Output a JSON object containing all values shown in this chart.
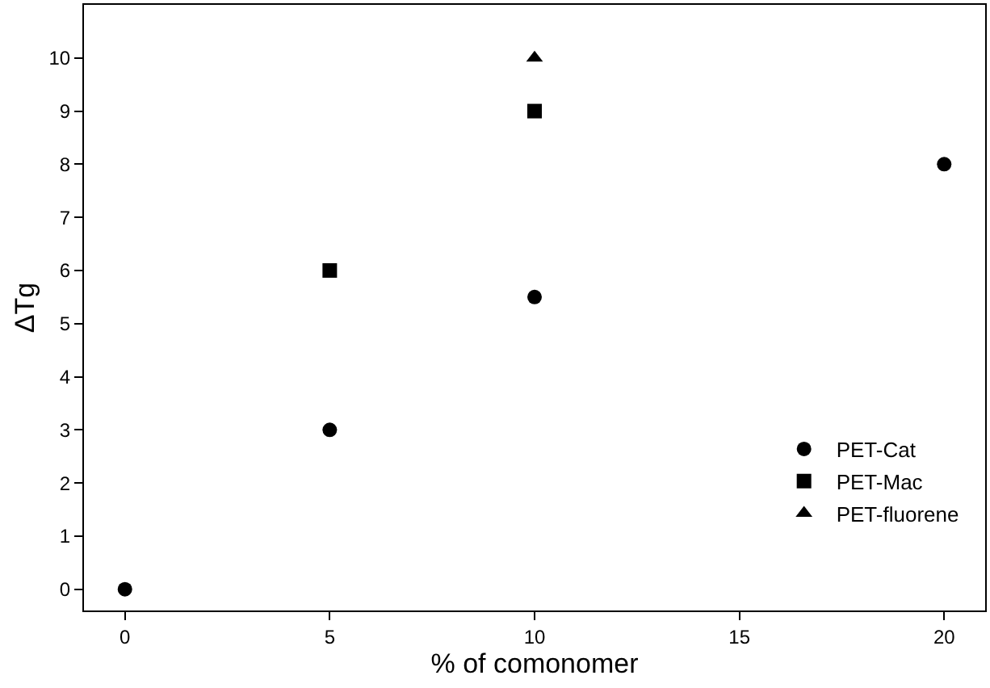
{
  "chart_data": {
    "type": "scatter",
    "xlabel": "% of comonomer",
    "ylabel": "ΔTg",
    "xlim": [
      -1,
      21
    ],
    "xticks": [
      0,
      5,
      10,
      15,
      20
    ],
    "ylim": [
      -0.4,
      11
    ],
    "yticks": [
      0,
      1,
      2,
      3,
      4,
      5,
      6,
      7,
      8,
      9,
      10
    ],
    "grid": false,
    "legend": "bottom right",
    "series": [
      {
        "name": "PET-Cat",
        "color": "#000000",
        "marker": "circle",
        "x": [
          0,
          5,
          10,
          20
        ],
        "values": [
          0,
          3,
          5.5,
          8
        ]
      },
      {
        "name": "PET-Mac",
        "color": "#000000",
        "marker": "square",
        "x": [
          5,
          10
        ],
        "values": [
          6,
          9
        ]
      },
      {
        "name": "PET-fluorene",
        "color": "#000000",
        "marker": "triangle",
        "x": [
          10
        ],
        "values": [
          10
        ]
      }
    ]
  }
}
